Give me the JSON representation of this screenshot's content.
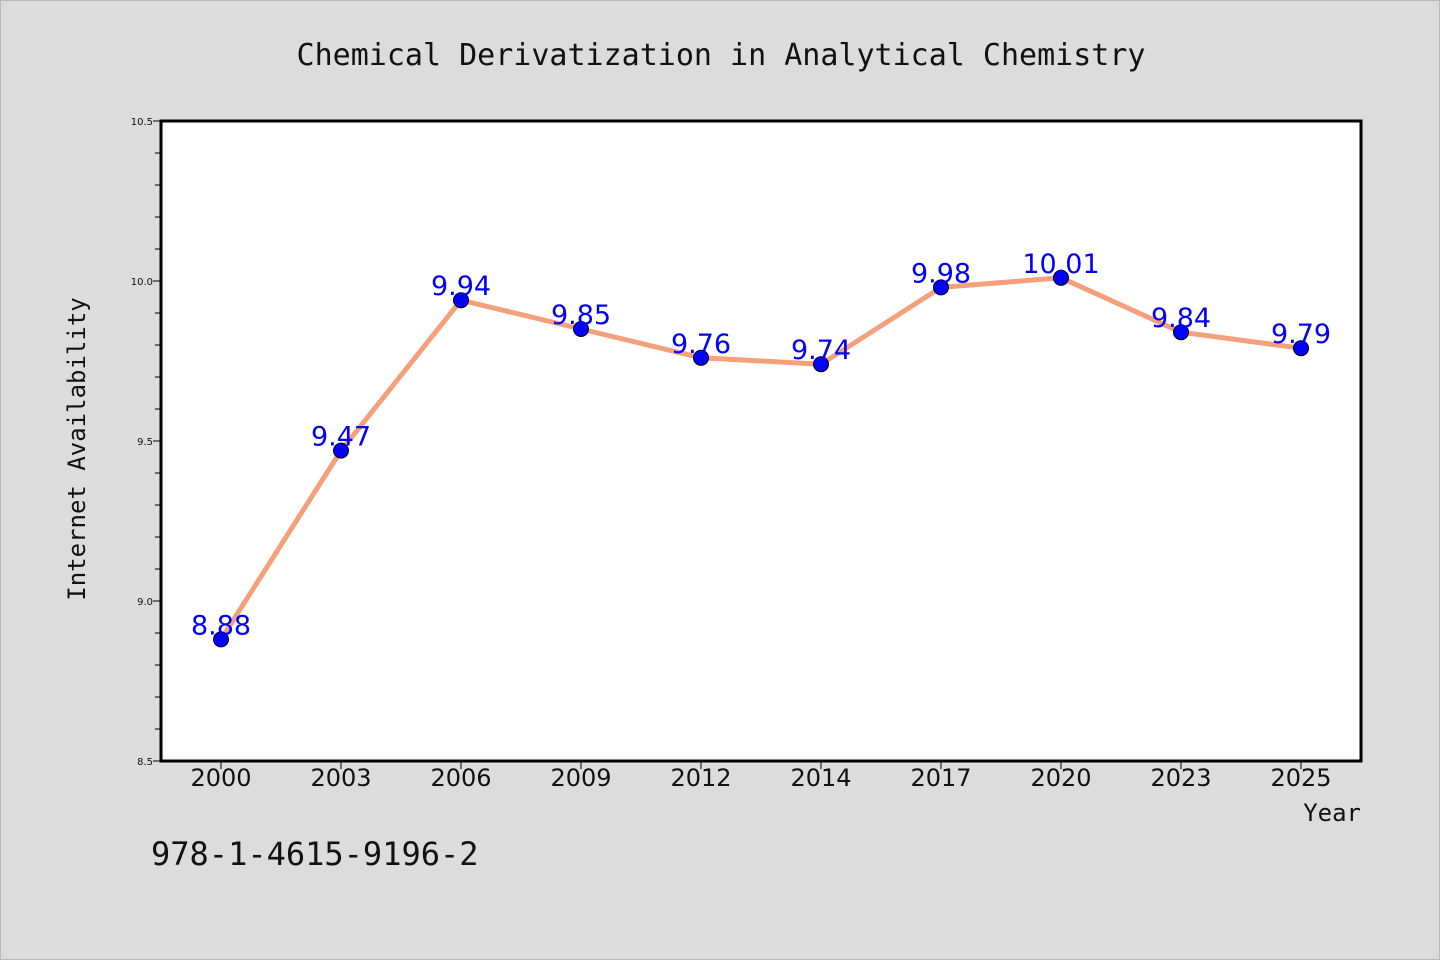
{
  "chart_data": {
    "type": "line",
    "title": "Chemical Derivatization in Analytical Chemistry",
    "xlabel": "Year",
    "ylabel": "Internet Availability",
    "categories": [
      "2000",
      "2003",
      "2006",
      "2009",
      "2012",
      "2014",
      "2017",
      "2020",
      "2023",
      "2025"
    ],
    "series": [
      {
        "values": [
          8.88,
          9.47,
          9.94,
          9.85,
          9.76,
          9.74,
          9.98,
          10.01,
          9.84,
          9.79
        ],
        "line_color": "#f4a07a",
        "marker_color": "#0000ff"
      }
    ],
    "data_labels": [
      "8.88",
      "9.47",
      "9.94",
      "9.85",
      "9.76",
      "9.74",
      "9.98",
      "10.01",
      "9.84",
      "9.79"
    ],
    "ylim": [
      8.5,
      10.5
    ],
    "yticks": [
      "8.5",
      "9.0",
      "9.5",
      "10.0",
      "10.5"
    ],
    "grid": false,
    "legend": "none"
  },
  "footer": {
    "isbn": "978-1-4615-9196-2"
  },
  "colors": {
    "background": "#dcdcdc",
    "plot_background": "#ffffff",
    "label_color": "#0000ff"
  }
}
